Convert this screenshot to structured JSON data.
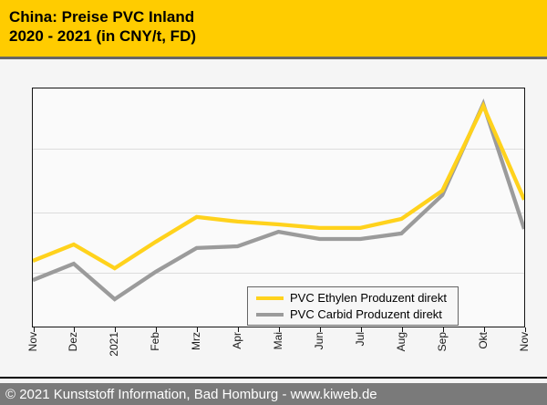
{
  "header": {
    "title_line1": "China: Preise PVC Inland",
    "title_line2": "2020 - 2021 (in CNY/t, FD)",
    "bg_color": "#FFCC00",
    "text_color": "#000000"
  },
  "footer": {
    "text": "© 2021 Kunststoff Information, Bad Homburg - www.kiweb.de",
    "bg_color": "#7A7A7A",
    "text_color": "#FFFFFF"
  },
  "chart_data": {
    "type": "line",
    "title": "China: Preise PVC Inland 2020 - 2021 (in CNY/t, FD)",
    "unit": "CNY/t",
    "categories": [
      "Nov",
      "Dez",
      "2021",
      "Feb",
      "Mrz",
      "Apr",
      "Mai",
      "Jun",
      "Jul",
      "Aug",
      "Sep",
      "Okt",
      "Nov"
    ],
    "y_axis_labels_visible": false,
    "values_note": "y-axis is unlabeled in the source; values are percent of plot height measured from the plot bottom",
    "series": [
      {
        "name": "PVC Ethylen Produzent direkt",
        "color": "#FFD21C",
        "values_pct": [
          27.6,
          34.5,
          24.5,
          35.6,
          46.0,
          44.1,
          42.9,
          41.4,
          41.4,
          45.2,
          57.1,
          92.7,
          53.3
        ]
      },
      {
        "name": "PVC Carbid Produzent direkt",
        "color": "#9B9B9B",
        "values_pct": [
          19.5,
          26.4,
          11.5,
          23.0,
          33.0,
          33.7,
          39.8,
          36.8,
          36.8,
          39.1,
          55.2,
          93.5,
          41.0
        ]
      }
    ],
    "grid": "horizontal",
    "gridline_positions_pct_from_top": [
      25.3,
      52.1,
      77.4
    ],
    "legend_position": "inside plot, bottom-right"
  }
}
